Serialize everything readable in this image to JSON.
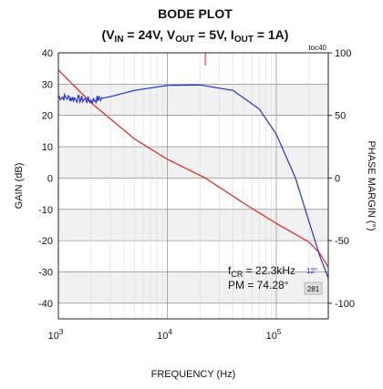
{
  "chart_data": {
    "type": "line",
    "title": "BODE PLOT",
    "subtitle": {
      "open": "(V",
      "vin_sub": "IN",
      "vin_val": " = 24V, V",
      "vout_sub": "OUT",
      "vout_val": " = 5V, I",
      "iout_sub": "OUT",
      "close": " = 1A)"
    },
    "figure_tag": "toc40",
    "xlabel": "FREQUENCY (Hz)",
    "ylabel_left": "GAIN (dB)",
    "ylabel_right": "PHASE MARGIN (°)",
    "x_scale": "log",
    "xlim": [
      1000,
      300000
    ],
    "x_ticks": [
      {
        "value": 1000,
        "base": "10",
        "exp": "3"
      },
      {
        "value": 10000,
        "base": "10",
        "exp": "4"
      },
      {
        "value": 100000,
        "base": "10",
        "exp": "5"
      }
    ],
    "ylim_left": [
      -45,
      40
    ],
    "y_ticks_left": [
      40,
      30,
      20,
      10,
      0,
      -10,
      -20,
      -30,
      -40
    ],
    "ylim_right": [
      -112.5,
      100
    ],
    "y_ticks_right": [
      100,
      50,
      0,
      -50,
      -100
    ],
    "grid": true,
    "shaded_bands_left_axis": [
      [
        20,
        30
      ],
      [
        0,
        10
      ],
      [
        -20,
        -10
      ],
      [
        -40,
        -30
      ]
    ],
    "series": [
      {
        "role": "gain",
        "axis": "left",
        "color": "#e8201a",
        "x": [
          1000,
          2000,
          5000,
          10000,
          22300,
          50000,
          100000,
          150000,
          200000,
          250000,
          300000
        ],
        "y": [
          34.5,
          24,
          12.5,
          6,
          0,
          -8,
          -14.5,
          -18,
          -20.5,
          -24,
          -28.5
        ]
      },
      {
        "role": "phase margin",
        "axis": "right",
        "color": "#2233d6",
        "noisy_until_x": 2500,
        "x": [
          1000,
          2000,
          3000,
          5000,
          10000,
          20000,
          40000,
          70000,
          100000,
          150000,
          200000,
          250000,
          300000
        ],
        "y": [
          65,
          62,
          65,
          70,
          74,
          74.3,
          70,
          55,
          35,
          0,
          -35,
          -62,
          -80
        ]
      }
    ],
    "marker": {
      "x": 22300,
      "color": "#e8201a"
    },
    "annotation": {
      "fcr_prefix": "f",
      "fcr_sub": "CR",
      "fcr_value": " = 22.3kHz",
      "pm": "PM = 74.28°"
    },
    "corner_marks": {
      "blue": "12°",
      "grey": "281"
    }
  }
}
